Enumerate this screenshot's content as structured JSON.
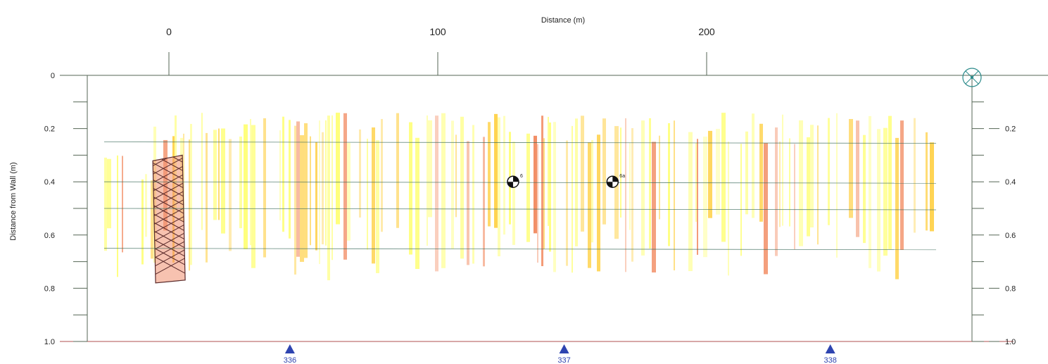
{
  "chart_data": {
    "type": "heatmap",
    "title": "Distance (m)",
    "xlabel": "Distance (m)",
    "ylabel": "Distance from Wall (m)",
    "x_ticks": [
      0,
      100,
      200
    ],
    "y_ticks_left": [
      "0",
      "0.2",
      "0.4",
      "0.6",
      "0.8",
      "1.0"
    ],
    "y_ticks_right": [
      "0.2",
      "0.4",
      "0.6",
      "0.8",
      "1.0"
    ],
    "xlim": [
      -30,
      300
    ],
    "ylim": [
      0,
      1.0
    ],
    "scan_lines": [
      0.25,
      0.4,
      0.5,
      0.65
    ],
    "core_markers": [
      {
        "label": "6",
        "x": 128,
        "y": 0.4
      },
      {
        "label": "6a",
        "x": 165,
        "y": 0.4
      }
    ],
    "chainage_markers": [
      {
        "label": "336",
        "x": 45
      },
      {
        "label": "337",
        "x": 147
      },
      {
        "label": "338",
        "x": 246
      }
    ],
    "hatched_zone": {
      "x_from": -6,
      "x_to": 5,
      "y_from": 0.3,
      "y_to": 0.78
    },
    "colors": {
      "low": "#ffff66",
      "mid": "#ffcc33",
      "high": "#f07a4a",
      "axis": "#556655",
      "marker": "#2e44b0",
      "hatch": "#5a2a2a"
    }
  }
}
